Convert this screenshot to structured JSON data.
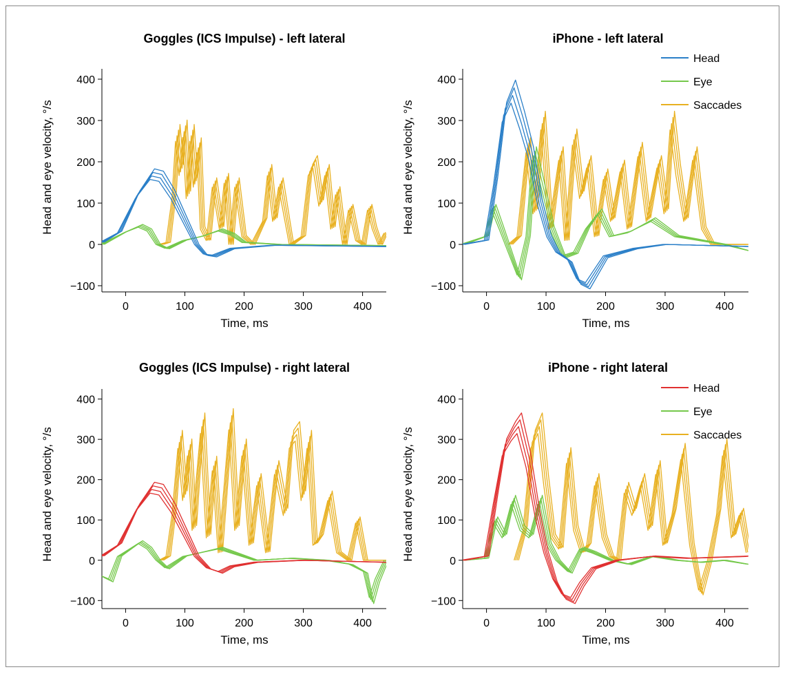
{
  "colors": {
    "head_left": "#2a7fc8",
    "head_right": "#e03030",
    "eye": "#74c84a",
    "saccades": "#e8b020"
  },
  "chart_data": [
    {
      "type": "line",
      "title": "Goggles (ICS Impulse) - left lateral",
      "xlabel": "Time, ms",
      "ylabel": "Head and eye velocity, °/s",
      "xlim": [
        -40,
        440
      ],
      "ylim": [
        -115,
        425
      ],
      "xticks": [
        0,
        100,
        200,
        300,
        400
      ],
      "yticks": [
        -100,
        0,
        100,
        200,
        300,
        400
      ],
      "legend": null,
      "series": [
        {
          "name": "Head",
          "color_key": "head_left",
          "x": [
            -40,
            -10,
            20,
            45,
            60,
            80,
            100,
            120,
            135,
            150,
            180,
            250,
            440
          ],
          "y": [
            5,
            30,
            120,
            170,
            165,
            120,
            60,
            0,
            -25,
            -28,
            -10,
            -2,
            -5
          ]
        },
        {
          "name": "Eye",
          "color_key": "eye",
          "x": [
            -40,
            0,
            25,
            40,
            55,
            70,
            100,
            130,
            160,
            180,
            200,
            260,
            440
          ],
          "y": [
            0,
            30,
            45,
            35,
            0,
            -10,
            10,
            20,
            35,
            25,
            5,
            0,
            -3
          ]
        },
        {
          "name": "Saccades",
          "color_key": "saccades",
          "x": [
            60,
            72,
            82,
            88,
            94,
            100,
            106,
            112,
            118,
            124,
            130,
            140,
            150,
            162,
            170,
            178,
            188,
            200,
            215,
            235,
            243,
            252,
            262,
            280,
            300,
            312,
            320,
            330,
            340,
            350,
            358,
            370,
            380,
            392,
            402,
            412,
            420,
            430,
            440
          ],
          "y": [
            0,
            5,
            120,
            270,
            180,
            280,
            120,
            270,
            150,
            240,
            40,
            10,
            150,
            40,
            160,
            0,
            150,
            20,
            0,
            60,
            180,
            60,
            150,
            0,
            20,
            180,
            200,
            100,
            180,
            40,
            130,
            0,
            90,
            10,
            0,
            90,
            40,
            0,
            30
          ]
        }
      ]
    },
    {
      "type": "line",
      "title": "iPhone - left lateral",
      "xlabel": "Time, ms",
      "ylabel": "Head and eye velocity, °/s",
      "xlim": [
        -40,
        440
      ],
      "ylim": [
        -115,
        425
      ],
      "xticks": [
        0,
        100,
        200,
        300,
        400
      ],
      "yticks": [
        -100,
        0,
        100,
        200,
        300,
        400
      ],
      "legend": "top-right",
      "series": [
        {
          "name": "Head",
          "color_key": "head_left",
          "x": [
            -40,
            0,
            15,
            30,
            45,
            60,
            75,
            90,
            105,
            120,
            140,
            155,
            170,
            200,
            250,
            300,
            440
          ],
          "y": [
            0,
            10,
            150,
            320,
            370,
            300,
            220,
            100,
            20,
            -20,
            -40,
            -90,
            -100,
            -30,
            -10,
            0,
            -5
          ]
        },
        {
          "name": "Eye",
          "color_key": "eye",
          "x": [
            -40,
            0,
            12,
            25,
            40,
            55,
            70,
            80,
            95,
            110,
            130,
            150,
            170,
            190,
            210,
            240,
            280,
            320,
            360,
            400,
            440
          ],
          "y": [
            0,
            20,
            90,
            40,
            -20,
            -80,
            20,
            220,
            130,
            40,
            -30,
            -20,
            40,
            80,
            20,
            30,
            60,
            20,
            10,
            0,
            -15
          ]
        },
        {
          "name": "Saccades",
          "color_key": "saccades",
          "x": [
            40,
            55,
            70,
            82,
            95,
            108,
            125,
            135,
            148,
            160,
            172,
            185,
            200,
            212,
            228,
            240,
            258,
            272,
            290,
            302,
            312,
            322,
            335,
            350,
            365,
            380,
            440
          ],
          "y": [
            0,
            20,
            240,
            80,
            300,
            40,
            220,
            10,
            260,
            120,
            200,
            20,
            170,
            60,
            190,
            40,
            230,
            60,
            200,
            80,
            300,
            180,
            60,
            220,
            40,
            0,
            0
          ]
        }
      ]
    },
    {
      "type": "line",
      "title": "Goggles (ICS Impulse) - right lateral",
      "xlabel": "Time, ms",
      "ylabel": "Head and eye velocity, °/s",
      "xlim": [
        -40,
        440
      ],
      "ylim": [
        -120,
        425
      ],
      "xticks": [
        0,
        100,
        200,
        300,
        400
      ],
      "yticks": [
        -100,
        0,
        100,
        200,
        300,
        400
      ],
      "legend": null,
      "series": [
        {
          "name": "Head",
          "color_key": "head_right",
          "x": [
            -40,
            -10,
            20,
            45,
            60,
            80,
            100,
            120,
            140,
            160,
            180,
            220,
            300,
            440
          ],
          "y": [
            10,
            40,
            130,
            180,
            175,
            130,
            70,
            10,
            -20,
            -30,
            -15,
            -5,
            0,
            -5
          ]
        },
        {
          "name": "Eye",
          "color_key": "eye",
          "x": [
            -40,
            -25,
            -10,
            10,
            25,
            40,
            55,
            70,
            100,
            130,
            160,
            190,
            220,
            280,
            340,
            380,
            405,
            415,
            425,
            440
          ],
          "y": [
            -40,
            -50,
            10,
            30,
            45,
            30,
            0,
            -20,
            10,
            20,
            30,
            15,
            0,
            5,
            0,
            -10,
            -30,
            -100,
            -50,
            0
          ]
        },
        {
          "name": "Saccades",
          "color_key": "saccades",
          "x": [
            60,
            72,
            82,
            92,
            100,
            108,
            116,
            122,
            130,
            140,
            150,
            160,
            170,
            178,
            188,
            200,
            212,
            225,
            240,
            255,
            270,
            280,
            290,
            300,
            310,
            320,
            330,
            345,
            360,
            378,
            392,
            405,
            440
          ],
          "y": [
            0,
            10,
            120,
            300,
            160,
            280,
            80,
            200,
            340,
            60,
            240,
            20,
            200,
            350,
            80,
            280,
            40,
            200,
            20,
            230,
            120,
            300,
            320,
            160,
            300,
            40,
            60,
            160,
            20,
            0,
            100,
            0,
            0
          ]
        }
      ]
    },
    {
      "type": "line",
      "title": "iPhone - right lateral",
      "xlabel": "Time, ms",
      "ylabel": "Head and eye velocity, °/s",
      "xlim": [
        -40,
        440
      ],
      "ylim": [
        -120,
        425
      ],
      "xticks": [
        0,
        100,
        200,
        300,
        400
      ],
      "yticks": [
        -100,
        0,
        100,
        200,
        300,
        400
      ],
      "legend": "top-right",
      "series": [
        {
          "name": "Head",
          "color_key": "head_right",
          "x": [
            -40,
            0,
            15,
            30,
            45,
            55,
            70,
            85,
            100,
            115,
            130,
            145,
            160,
            180,
            220,
            280,
            340,
            440
          ],
          "y": [
            0,
            10,
            150,
            280,
            320,
            340,
            250,
            120,
            20,
            -50,
            -90,
            -100,
            -60,
            -20,
            0,
            10,
            5,
            10
          ]
        },
        {
          "name": "Eye",
          "color_key": "eye",
          "x": [
            -40,
            0,
            15,
            30,
            45,
            60,
            75,
            90,
            105,
            120,
            140,
            160,
            180,
            210,
            240,
            280,
            320,
            360,
            400,
            440
          ],
          "y": [
            0,
            5,
            100,
            60,
            150,
            80,
            60,
            150,
            40,
            0,
            -30,
            30,
            20,
            0,
            -10,
            10,
            0,
            -5,
            0,
            -10
          ]
        },
        {
          "name": "Saccades",
          "color_key": "saccades",
          "x": [
            50,
            65,
            78,
            90,
            100,
            112,
            125,
            138,
            150,
            162,
            172,
            185,
            198,
            210,
            222,
            235,
            248,
            262,
            275,
            288,
            300,
            315,
            330,
            345,
            360,
            375,
            390,
            400,
            415,
            428,
            440
          ],
          "y": [
            0,
            80,
            300,
            340,
            200,
            60,
            30,
            260,
            80,
            20,
            40,
            200,
            60,
            10,
            0,
            180,
            120,
            200,
            80,
            230,
            40,
            120,
            270,
            40,
            -80,
            0,
            120,
            280,
            60,
            120,
            20
          ]
        }
      ]
    }
  ],
  "panels": [
    {
      "title": "Goggles (ICS Impulse) - left lateral",
      "xlabel": "Time, ms",
      "ylabel": "Head and eye velocity, °/s",
      "legend_entries": []
    },
    {
      "title": "iPhone - left lateral",
      "xlabel": "Time, ms",
      "ylabel": "Head and eye velocity, °/s",
      "legend_entries": [
        "Head",
        "Eye",
        "Saccades"
      ]
    },
    {
      "title": "Goggles (ICS Impulse) - right lateral",
      "xlabel": "Time, ms",
      "ylabel": "Head and eye velocity, °/s",
      "legend_entries": []
    },
    {
      "title": "iPhone - right lateral",
      "xlabel": "Time, ms",
      "ylabel": "Head and eye velocity, °/s",
      "legend_entries": [
        "Head",
        "Eye",
        "Saccades"
      ]
    }
  ],
  "tick_text": {
    "x": [
      "0",
      "100",
      "200",
      "300",
      "400"
    ],
    "y": [
      "−100",
      "0",
      "100",
      "200",
      "300",
      "400"
    ]
  }
}
